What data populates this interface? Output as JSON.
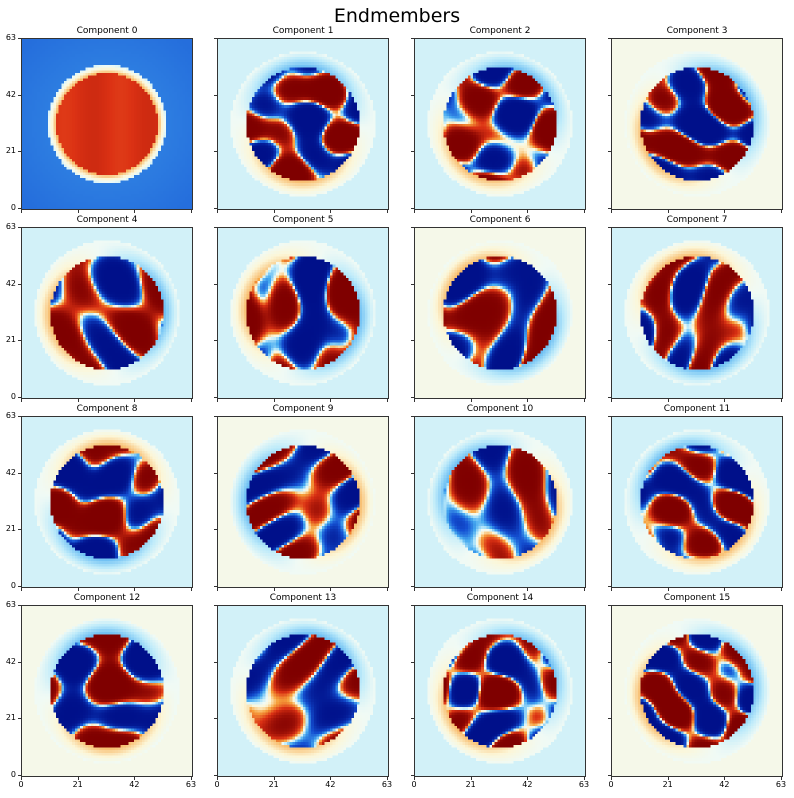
{
  "chart_data": {
    "type": "heatmap",
    "title": "Endmembers",
    "grid": false,
    "cmap": "jet",
    "rows": 4,
    "cols": 4,
    "image_size": [
      64,
      64
    ],
    "xlim": [
      0,
      63
    ],
    "ylim": [
      0,
      63
    ],
    "xticks": [
      "0",
      "21",
      "42",
      "63"
    ],
    "yticks": [
      "63",
      "42",
      "21",
      "0"
    ],
    "panels": [
      {
        "title": "Component 0",
        "kind": "disc",
        "seed": 0
      },
      {
        "title": "Component 1",
        "kind": "blobs",
        "seed": 1
      },
      {
        "title": "Component 2",
        "kind": "blobs",
        "seed": 2
      },
      {
        "title": "Component 3",
        "kind": "blobs",
        "seed": 3
      },
      {
        "title": "Component 4",
        "kind": "blobs",
        "seed": 4
      },
      {
        "title": "Component 5",
        "kind": "blobs",
        "seed": 5
      },
      {
        "title": "Component 6",
        "kind": "blobs",
        "seed": 6
      },
      {
        "title": "Component 7",
        "kind": "blobs",
        "seed": 7
      },
      {
        "title": "Component 8",
        "kind": "blobs",
        "seed": 8
      },
      {
        "title": "Component 9",
        "kind": "blobs",
        "seed": 9
      },
      {
        "title": "Component 10",
        "kind": "blobs",
        "seed": 10
      },
      {
        "title": "Component 11",
        "kind": "blobs",
        "seed": 11
      },
      {
        "title": "Component 12",
        "kind": "blobs",
        "seed": 12
      },
      {
        "title": "Component 13",
        "kind": "blobs",
        "seed": 13
      },
      {
        "title": "Component 14",
        "kind": "blobs",
        "seed": 14
      },
      {
        "title": "Component 15",
        "kind": "blobs",
        "seed": 15
      }
    ],
    "colors": {
      "deep_red": "#7f0000",
      "red": "#e03a1c",
      "orange": "#f6a23c",
      "pale": "#fdfce8",
      "light_blue": "#d8f3fb",
      "blue": "#1e90e6",
      "deep_blue": "#00108a"
    }
  }
}
